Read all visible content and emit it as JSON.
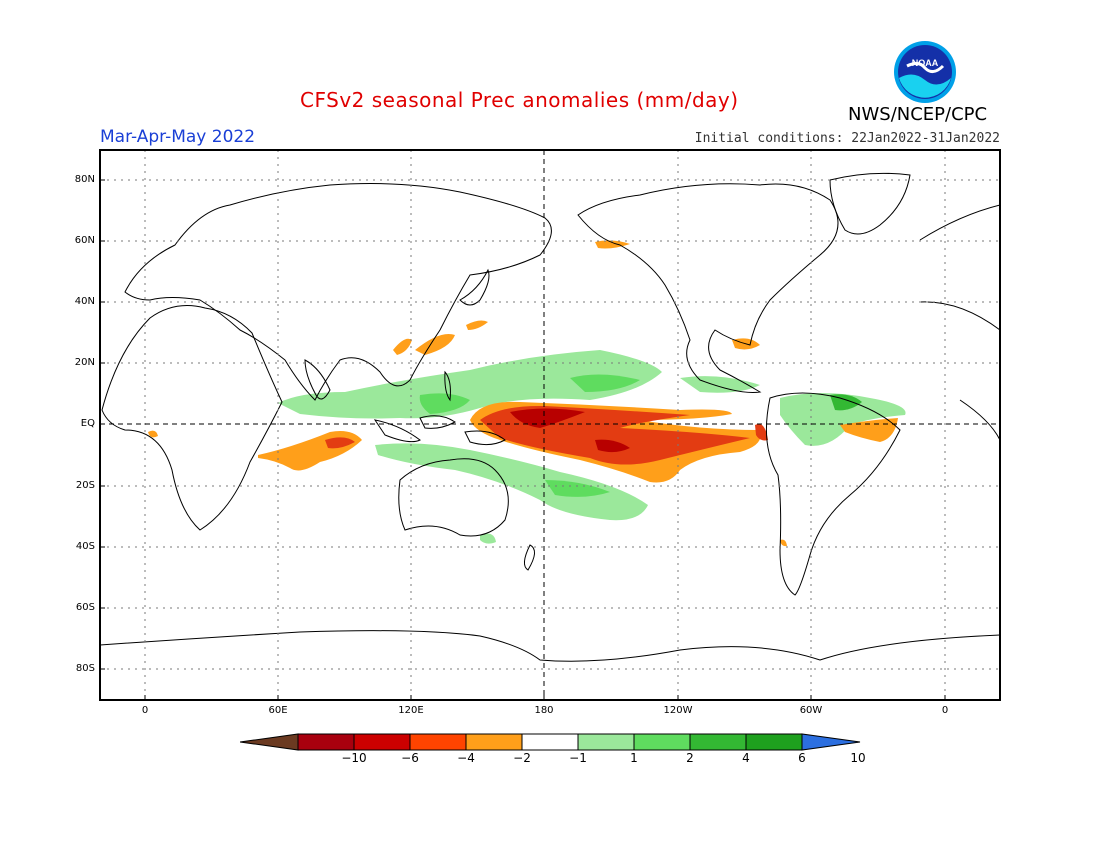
{
  "title": "CFSv2 seasonal Prec anomalies (mm/day)",
  "season": "Mar-Apr-May 2022",
  "initial_conditions": "Initial conditions: 22Jan2022-31Jan2022",
  "agency": "NWS/NCEP/CPC",
  "logo_text": "NOAA",
  "lat_labels": [
    "80N",
    "60N",
    "40N",
    "20N",
    "EQ",
    "20S",
    "40S",
    "60S",
    "80S"
  ],
  "lon_labels": [
    "0",
    "60E",
    "120E",
    "180",
    "120W",
    "60W",
    "0"
  ],
  "colorbar": {
    "labels": [
      "-10",
      "-6",
      "-4",
      "-2",
      "-1",
      "1",
      "2",
      "4",
      "6",
      "10"
    ],
    "colors": [
      "#6b3a21",
      "#a8000e",
      "#cc0000",
      "#ff4400",
      "#ff9f1a",
      "#ffffff",
      "#9be89b",
      "#5fdc5f",
      "#33b833",
      "#1ea01e",
      "#2c6fe0"
    ]
  },
  "map": {
    "projection": "cylindrical equidistant",
    "lon_range": [
      -20,
      380
    ],
    "lat_range": [
      -90,
      90
    ],
    "grid": "dotted every 20 deg lat / 60 deg lon",
    "reference_lines": [
      "equator",
      "180 meridian"
    ],
    "anomaly_colors": {
      "dry_strong": "#b80000",
      "dry_mid": "#e33c12",
      "dry_light": "#ff9f1a",
      "wet_light": "#9be89b",
      "wet_mid": "#5fdc5f",
      "wet_strong": "#2ca82c"
    }
  }
}
